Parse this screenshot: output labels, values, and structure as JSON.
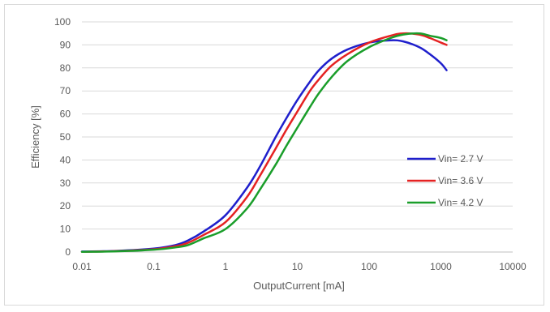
{
  "chart_data": {
    "type": "line",
    "title": "",
    "xlabel": "OutputCurrent [mA]",
    "ylabel": "Efficiency [%]",
    "xscale": "log",
    "xlim": [
      0.01,
      10000
    ],
    "ylim": [
      0,
      100
    ],
    "x_ticks": [
      "0.01",
      "0.1",
      "1",
      "10",
      "100",
      "1000",
      "10000"
    ],
    "y_ticks": [
      "0",
      "10",
      "20",
      "30",
      "40",
      "50",
      "60",
      "70",
      "80",
      "90",
      "100"
    ],
    "grid": "horizontal",
    "legend": "right",
    "series": [
      {
        "name": "Vin= 2.7 V",
        "color": "#1f1fcc",
        "x": [
          0.01,
          0.03,
          0.1,
          0.2,
          0.3,
          0.5,
          1,
          2,
          3,
          5,
          7,
          10,
          15,
          20,
          30,
          50,
          100,
          200,
          300,
          500,
          700,
          1000,
          1200
        ],
        "y": [
          0.2,
          0.5,
          1.5,
          3,
          5,
          9,
          16,
          28,
          37,
          50,
          58,
          66,
          74,
          79,
          84,
          88,
          91,
          92,
          91.5,
          89,
          86,
          82,
          79
        ]
      },
      {
        "name": "Vin= 3.6 V",
        "color": "#e52222",
        "x": [
          0.01,
          0.03,
          0.1,
          0.2,
          0.3,
          0.5,
          1,
          2,
          3,
          5,
          7,
          10,
          15,
          20,
          30,
          50,
          100,
          200,
          300,
          500,
          700,
          1000,
          1200
        ],
        "y": [
          0.1,
          0.4,
          1.2,
          2.5,
          4,
          7.5,
          13,
          24,
          33,
          45,
          53,
          61,
          70,
          75,
          81,
          86,
          91,
          94,
          95,
          94.5,
          93,
          91,
          90
        ]
      },
      {
        "name": "Vin= 4.2 V",
        "color": "#1a9e2a",
        "x": [
          0.01,
          0.03,
          0.1,
          0.2,
          0.3,
          0.5,
          1,
          2,
          3,
          5,
          7,
          10,
          15,
          20,
          30,
          50,
          100,
          200,
          300,
          500,
          700,
          1000,
          1200
        ],
        "y": [
          0.1,
          0.3,
          1,
          2,
          3,
          6,
          10,
          19,
          27,
          38,
          46,
          54,
          63,
          69,
          76,
          83,
          89,
          93,
          94.5,
          95,
          94,
          93,
          92
        ]
      }
    ]
  }
}
